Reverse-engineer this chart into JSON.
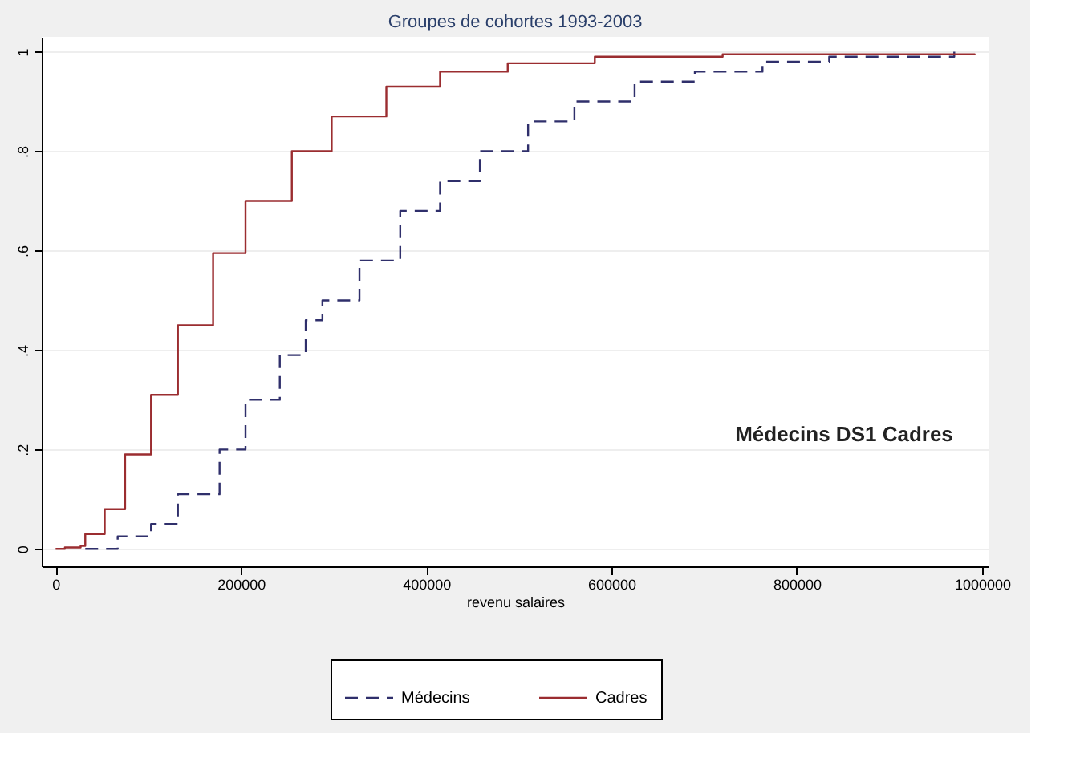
{
  "chart_data": {
    "type": "step",
    "title": "Groupes de cohortes 1993-2003",
    "xlabel": "revenu salaires",
    "annotations": [
      "Médecins DS1 Cadres"
    ],
    "xlim": [
      -15000,
      1007000
    ],
    "ylim": [
      -0.035,
      1.03
    ],
    "xticks": [
      0,
      200000,
      400000,
      600000,
      800000,
      1000000
    ],
    "yticks": [
      0,
      {
        "value": 0.2,
        "label": ".2"
      },
      {
        "value": 0.4,
        "label": ".4"
      },
      {
        "value": 0.6,
        "label": ".6"
      },
      {
        "value": 0.8,
        "label": ".8"
      },
      1
    ],
    "grid": "y",
    "legend": "bottom",
    "series": [
      {
        "name": "Médecins",
        "color": "#2f2f6b",
        "line_style": "dashed",
        "x": [
          32000,
          67000,
          103000,
          132000,
          177000,
          205000,
          242000,
          270000,
          288000,
          328000,
          372000,
          415000,
          458000,
          510000,
          560000,
          625000,
          690000,
          763000,
          835000,
          970000
        ],
        "values": [
          0,
          0.025,
          0.05,
          0.11,
          0.2,
          0.3,
          0.39,
          0.46,
          0.5,
          0.58,
          0.68,
          0.74,
          0.8,
          0.86,
          0.9,
          0.94,
          0.96,
          0.98,
          0.99,
          1.0
        ]
      },
      {
        "name": "Cadres",
        "color": "#9b2d30",
        "line_style": "solid",
        "x": [
          0,
          10000,
          27000,
          32000,
          53000,
          75000,
          103000,
          132000,
          170000,
          205000,
          255000,
          298000,
          357000,
          415000,
          488000,
          582000,
          720000,
          992000
        ],
        "values": [
          0,
          0.003,
          0.006,
          0.03,
          0.08,
          0.19,
          0.31,
          0.45,
          0.595,
          0.7,
          0.8,
          0.87,
          0.93,
          0.96,
          0.977,
          0.99,
          0.995,
          0.993
        ]
      }
    ]
  }
}
